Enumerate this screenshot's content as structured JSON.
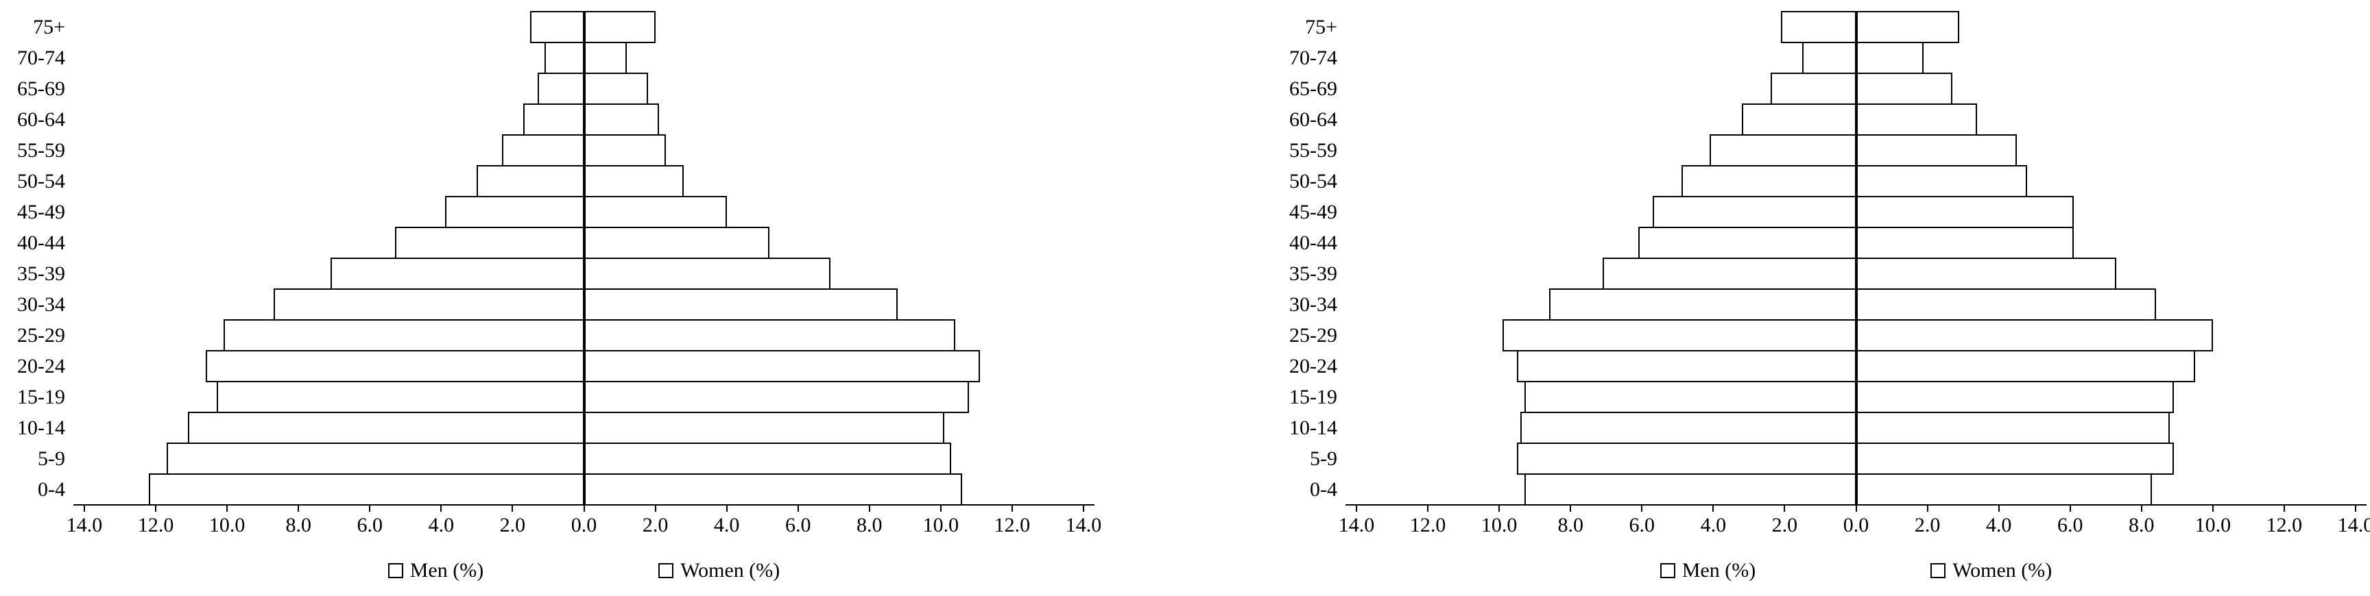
{
  "page": {
    "background": "#ffffff"
  },
  "chart_data": [
    {
      "type": "bar",
      "subtype": "population-pyramid",
      "title": "",
      "bar_fill": "#ffffff",
      "bar_border": "#000000",
      "categories_top_to_bottom": [
        "75+",
        "70-74",
        "65-69",
        "60-64",
        "55-59",
        "50-54",
        "45-49",
        "40-44",
        "35-39",
        "30-34",
        "25-29",
        "20-24",
        "15-19",
        "10-14",
        "5-9",
        "0-4"
      ],
      "series": [
        {
          "name": "Men (%)",
          "side": "left",
          "values_top_to_bottom": [
            1.5,
            1.1,
            1.3,
            1.7,
            2.3,
            3.0,
            3.9,
            5.3,
            7.1,
            8.7,
            10.1,
            10.6,
            10.3,
            11.1,
            11.7,
            12.2
          ]
        },
        {
          "name": "Women (%)",
          "side": "right",
          "values_top_to_bottom": [
            2.0,
            1.2,
            1.8,
            2.1,
            2.3,
            2.8,
            4.0,
            5.2,
            6.9,
            8.8,
            10.4,
            11.1,
            10.8,
            10.1,
            10.3,
            10.6
          ]
        }
      ],
      "x_axis": {
        "unit": "percent",
        "max_each_side": 14,
        "tick_step": 2,
        "tick_labels": [
          "14.0",
          "12.0",
          "10.0",
          "8.0",
          "6.0",
          "4.0",
          "2.0",
          "0.0",
          "2.0",
          "4.0",
          "6.0",
          "8.0",
          "10.0",
          "12.0",
          "14.0"
        ]
      },
      "legend": [
        {
          "label": "Men (%)"
        },
        {
          "label": "Women (%)"
        }
      ]
    },
    {
      "type": "bar",
      "subtype": "population-pyramid",
      "title": "",
      "bar_fill": "#ffffff",
      "bar_border": "#000000",
      "categories_top_to_bottom": [
        "75+",
        "70-74",
        "65-69",
        "60-64",
        "55-59",
        "50-54",
        "45-49",
        "40-44",
        "35-39",
        "30-34",
        "25-29",
        "20-24",
        "15-19",
        "10-14",
        "5-9",
        "0-4"
      ],
      "series": [
        {
          "name": "Men (%)",
          "side": "left",
          "values_top_to_bottom": [
            2.1,
            1.5,
            2.4,
            3.2,
            4.1,
            4.9,
            5.7,
            6.1,
            7.1,
            8.6,
            9.9,
            9.5,
            9.3,
            9.4,
            9.5,
            9.3
          ]
        },
        {
          "name": "Women (%)",
          "side": "right",
          "values_top_to_bottom": [
            2.9,
            1.9,
            2.7,
            3.4,
            4.5,
            4.8,
            6.1,
            6.1,
            7.3,
            8.4,
            10.0,
            9.5,
            8.9,
            8.8,
            8.9,
            8.3
          ]
        }
      ],
      "x_axis": {
        "unit": "percent",
        "max_each_side": 14,
        "tick_step": 2,
        "tick_labels": [
          "14.0",
          "12.0",
          "10.0",
          "8.0",
          "6.0",
          "4.0",
          "2.0",
          "0.0",
          "2.0",
          "4.0",
          "6.0",
          "8.0",
          "10.0",
          "12.0",
          "14.0"
        ]
      },
      "legend": [
        {
          "label": "Men (%)"
        },
        {
          "label": "Women (%)"
        }
      ]
    }
  ]
}
